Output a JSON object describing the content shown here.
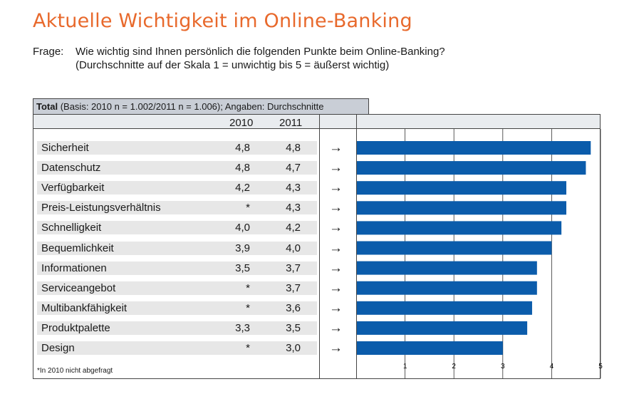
{
  "title": "Aktuelle Wichtigkeit im Online-Banking",
  "question": {
    "label": "Frage:",
    "line1": "Wie wichtig sind Ihnen persönlich die folgenden Punkte beim Online-Banking?",
    "line2": "(Durchschnitte auf der Skala 1 = unwichtig bis 5 = äußerst wichtig)"
  },
  "table": {
    "header_bold": "Total",
    "header_rest": " (Basis: 2010 n = 1.002/2011 n = 1.006); Angaben: Durchschnitte",
    "col_2010": "2010",
    "col_2011": "2011",
    "arrow_symbol": "→",
    "footnote": "*In 2010 nicht abgefragt"
  },
  "colors": {
    "bar": "#0b5cab",
    "title": "#e8692c"
  },
  "chart_data": {
    "type": "bar",
    "orientation": "horizontal",
    "title": "Aktuelle Wichtigkeit im Online-Banking",
    "categories": [
      "Sicherheit",
      "Datenschutz",
      "Verfügbarkeit",
      "Preis-Leistungsverhältnis",
      "Schnelligkeit",
      "Bequemlichkeit",
      "Informationen",
      "Serviceangebot",
      "Multibankfähigkeit",
      "Produktpalette",
      "Design"
    ],
    "series": [
      {
        "name": "2010",
        "values": [
          4.8,
          4.8,
          4.2,
          null,
          4.0,
          3.9,
          3.5,
          null,
          null,
          3.3,
          null
        ],
        "labels": [
          "4,8",
          "4,8",
          "4,2",
          "*",
          "4,0",
          "3,9",
          "3,5",
          "*",
          "*",
          "3,3",
          "*"
        ]
      },
      {
        "name": "2011",
        "values": [
          4.8,
          4.7,
          4.3,
          4.3,
          4.2,
          4.0,
          3.7,
          3.7,
          3.6,
          3.5,
          3.0
        ],
        "labels": [
          "4,8",
          "4,7",
          "4,3",
          "4,3",
          "4,2",
          "4,0",
          "3,7",
          "3,7",
          "3,6",
          "3,5",
          "3,0"
        ]
      }
    ],
    "plotted_series": "2011",
    "xlim": [
      0,
      5
    ],
    "ticks": [
      "1",
      "2",
      "3",
      "4",
      "5"
    ],
    "grid": true
  }
}
